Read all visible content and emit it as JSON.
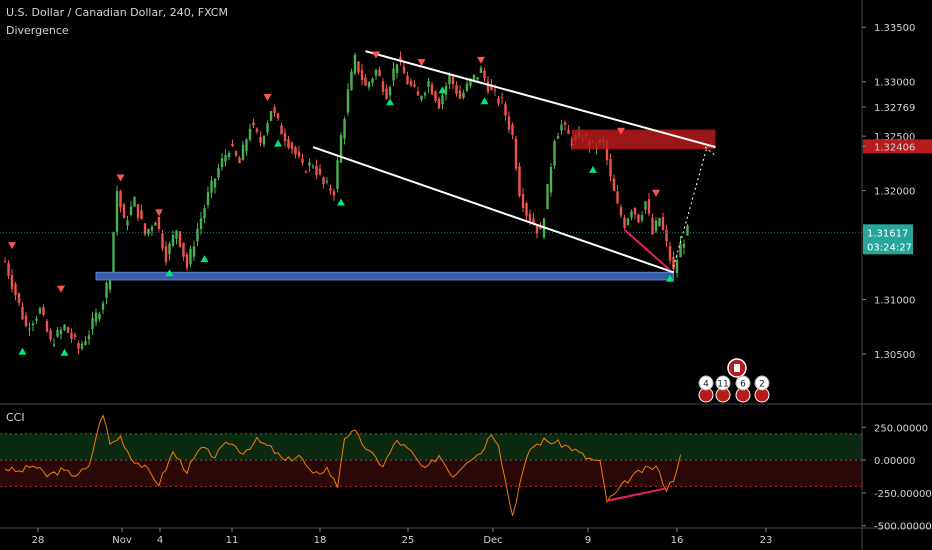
{
  "header": {
    "symbol_title": "U.S. Dollar / Canadian Dollar, 240, FXCM",
    "indicator_name": "Divergence"
  },
  "cci_pane": {
    "title": "CCI",
    "ticks": [
      "250.00000",
      "0.00000",
      "-250.00000",
      "-500.00000"
    ],
    "tick_values": [
      250,
      0,
      -250,
      -500
    ],
    "upper_band": 200,
    "lower_band": -200,
    "colors": {
      "line": "#f57c00",
      "upper_zone": "#0c2a12",
      "lower_zone": "#2a0808",
      "divergence": "#e91e63"
    }
  },
  "chart_data": [
    {
      "type": "candlestick",
      "title": "U.S. Dollar / Canadian Dollar, 240, FXCM",
      "subtitle": "Divergence",
      "x_ticks": [
        "28",
        "Nov",
        "4",
        "11",
        "18",
        "25",
        "Dec",
        "9",
        "16",
        "23"
      ],
      "y_ticks": [
        "1.33500",
        "1.33000",
        "1.32769",
        "1.32500",
        "1.32406",
        "1.32000",
        "1.31617",
        "1.31000",
        "1.30500"
      ],
      "y_tick_values": [
        1.335,
        1.33,
        1.32769,
        1.325,
        1.32406,
        1.32,
        1.31617,
        1.31,
        1.305
      ],
      "ylim": [
        1.3005,
        1.3375
      ],
      "grid": false,
      "last_price": "1.31617",
      "countdown": "03:24:27",
      "colors": {
        "up": "#26a69a",
        "up_candle": "#4caf50",
        "down": "#ef5350",
        "background": "#000000"
      },
      "price_path": [
        [
          0,
          1.3135
        ],
        [
          3,
          1.3105
        ],
        [
          6,
          1.3075
        ],
        [
          10,
          1.309
        ],
        [
          13,
          1.306
        ],
        [
          17,
          1.3075
        ],
        [
          21,
          1.3055
        ],
        [
          24,
          1.307
        ],
        [
          28,
          1.31
        ],
        [
          30,
          1.3125
        ],
        [
          32,
          1.32
        ],
        [
          34,
          1.317
        ],
        [
          37,
          1.319
        ],
        [
          40,
          1.316
        ],
        [
          43,
          1.3175
        ],
        [
          46,
          1.314
        ],
        [
          49,
          1.3165
        ],
        [
          52,
          1.313
        ],
        [
          55,
          1.3165
        ],
        [
          58,
          1.3195
        ],
        [
          61,
          1.322
        ],
        [
          64,
          1.324
        ],
        [
          67,
          1.3225
        ],
        [
          70,
          1.326
        ],
        [
          73,
          1.3245
        ],
        [
          76,
          1.3275
        ],
        [
          79,
          1.3255
        ],
        [
          82,
          1.324
        ],
        [
          85,
          1.322
        ],
        [
          88,
          1.3225
        ],
        [
          91,
          1.3205
        ],
        [
          94,
          1.32
        ],
        [
          96,
          1.325
        ],
        [
          98,
          1.329
        ],
        [
          100,
          1.332
        ],
        [
          103,
          1.3295
        ],
        [
          106,
          1.331
        ],
        [
          109,
          1.329
        ],
        [
          112,
          1.332
        ],
        [
          115,
          1.33
        ],
        [
          118,
          1.3285
        ],
        [
          121,
          1.33
        ],
        [
          124,
          1.328
        ],
        [
          127,
          1.3305
        ],
        [
          130,
          1.3285
        ],
        [
          133,
          1.33
        ],
        [
          136,
          1.331
        ],
        [
          139,
          1.329
        ],
        [
          142,
          1.328
        ],
        [
          145,
          1.325
        ],
        [
          147,
          1.32
        ],
        [
          149,
          1.318
        ],
        [
          151,
          1.317
        ],
        [
          153,
          1.316
        ],
        [
          155,
          1.32
        ],
        [
          157,
          1.325
        ],
        [
          159,
          1.326
        ],
        [
          162,
          1.3245
        ],
        [
          165,
          1.325
        ],
        [
          168,
          1.324
        ],
        [
          171,
          1.3245
        ],
        [
          173,
          1.321
        ],
        [
          175,
          1.3185
        ],
        [
          177,
          1.317
        ],
        [
          179,
          1.3185
        ],
        [
          181,
          1.3175
        ],
        [
          183,
          1.319
        ],
        [
          185,
          1.316
        ],
        [
          187,
          1.3175
        ],
        [
          189,
          1.315
        ],
        [
          191,
          1.3125
        ],
        [
          193,
          1.315
        ],
        [
          195,
          1.3162
        ]
      ],
      "horizontal_zone": {
        "name": "support-zone",
        "y_range": [
          1.3118,
          1.3125
        ],
        "x_range": [
          26,
          191
        ],
        "color": "#3a5da8"
      },
      "resistance_zone": {
        "name": "resistance-zone",
        "y_range": [
          1.3238,
          1.3256
        ],
        "x_range": [
          162,
          203
        ],
        "color": "#b71c1c"
      },
      "trendlines": [
        {
          "name": "upper-trendline",
          "from": [
            103,
            1.3328
          ],
          "to": [
            203,
            1.324
          ],
          "color": "#ffffff"
        },
        {
          "name": "lower-trendline",
          "from": [
            88,
            1.324
          ],
          "to": [
            191,
            1.3125
          ],
          "color": "#ffffff"
        },
        {
          "name": "projection-line-1",
          "from": [
            191,
            1.313
          ],
          "to": [
            201,
            1.3245
          ],
          "color": "#ffffff",
          "dotted": true
        },
        {
          "name": "projection-line-2",
          "from": [
            200,
            1.324
          ],
          "to": [
            203,
            1.3232
          ],
          "color": "#ffffff",
          "dotted": true
        },
        {
          "name": "divergence-line",
          "from": [
            177,
            1.3164
          ],
          "to": [
            190,
            1.3127
          ],
          "color": "#e91e63"
        }
      ],
      "buy_markers": [
        [
          5,
          1.3053
        ],
        [
          17,
          1.3052
        ],
        [
          47,
          1.3125
        ],
        [
          57,
          1.3138
        ],
        [
          78,
          1.3244
        ],
        [
          96,
          1.319
        ],
        [
          110,
          1.3282
        ],
        [
          125,
          1.3293
        ],
        [
          137,
          1.3283
        ],
        [
          168,
          1.322
        ],
        [
          190,
          1.312
        ]
      ],
      "sell_markers": [
        [
          2,
          1.315
        ],
        [
          16,
          1.311
        ],
        [
          33,
          1.3212
        ],
        [
          44,
          1.318
        ],
        [
          75,
          1.3286
        ],
        [
          106,
          1.3325
        ],
        [
          119,
          1.3318
        ],
        [
          136,
          1.332
        ],
        [
          176,
          1.3255
        ],
        [
          186,
          1.3198
        ]
      ],
      "calendar_badges": [
        "4",
        "11",
        "6",
        "2"
      ]
    },
    {
      "type": "line",
      "title": "CCI",
      "y_ticks": [
        "250.00000",
        "0.00000",
        "-250.00000",
        "-500.00000"
      ],
      "y_tick_values": [
        250,
        0,
        -250,
        -500
      ],
      "ylim": [
        -510,
        420
      ],
      "bands": [
        200,
        -200
      ],
      "x": [
        0,
        4,
        8,
        12,
        16,
        20,
        24,
        26,
        28,
        30,
        33,
        36,
        40,
        44,
        48,
        52,
        56,
        60,
        64,
        68,
        72,
        76,
        80,
        84,
        88,
        92,
        95,
        97,
        100,
        104,
        108,
        112,
        116,
        120,
        124,
        128,
        132,
        136,
        139,
        141,
        143,
        145,
        147,
        150,
        154,
        158,
        162,
        166,
        170,
        172,
        174,
        178,
        182,
        186,
        189,
        191,
        193
      ],
      "values": [
        -60,
        -90,
        -40,
        -120,
        -80,
        -110,
        -60,
        180,
        360,
        120,
        180,
        20,
        -60,
        -180,
        60,
        -80,
        90,
        30,
        140,
        60,
        150,
        90,
        -10,
        40,
        -120,
        -60,
        -200,
        180,
        210,
        60,
        -40,
        150,
        60,
        -80,
        40,
        -120,
        0,
        60,
        210,
        130,
        -160,
        -420,
        -190,
        90,
        150,
        130,
        90,
        20,
        -20,
        -310,
        -270,
        -150,
        -80,
        -50,
        -220,
        -140,
        40
      ]
    }
  ]
}
